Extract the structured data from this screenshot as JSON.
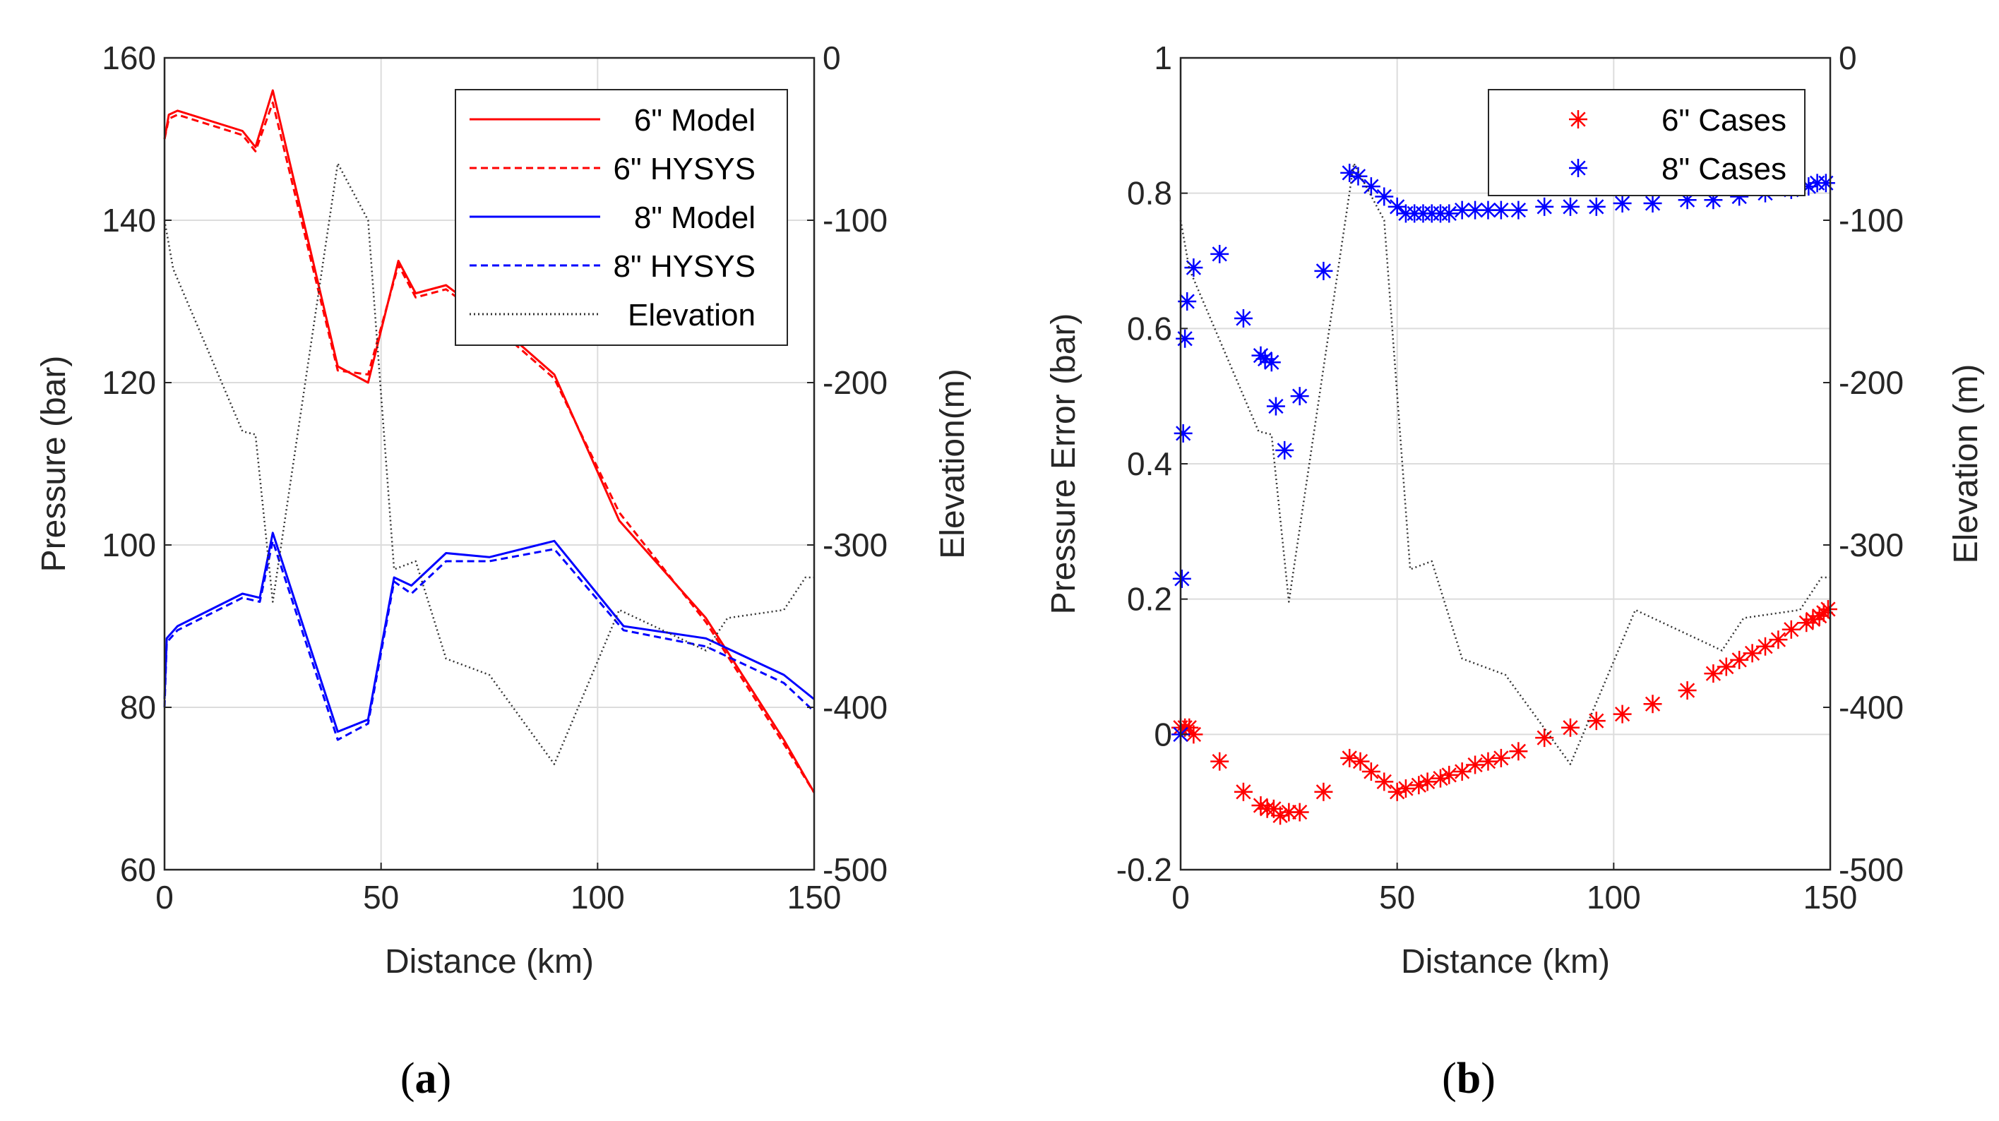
{
  "chart_data": [
    {
      "id": "a",
      "type": "line",
      "panel_label": {
        "open": "(",
        "letter": "a",
        "close": ")"
      },
      "xlabel": "Distance (km)",
      "ylabel": "Pressure (bar)",
      "y2label": "Elevation(m)",
      "xlim": [
        0,
        150
      ],
      "ylim": [
        60,
        160
      ],
      "y2lim": [
        -500,
        0
      ],
      "xticks": [
        "0",
        "50",
        "100",
        "150"
      ],
      "yticks": [
        "60",
        "80",
        "100",
        "120",
        "140",
        "160"
      ],
      "y2ticks": [
        "-500",
        "-400",
        "-300",
        "-200",
        "-100",
        "0"
      ],
      "grid": true,
      "legend_position": "top-right",
      "series": [
        {
          "name": "6\" Model",
          "axis": "left",
          "color": "#ff0000",
          "style": "solid",
          "x": [
            0,
            1,
            3,
            18,
            21,
            25,
            40,
            47,
            54,
            58,
            65,
            75,
            90,
            105,
            125,
            143,
            150
          ],
          "y": [
            150,
            153,
            153.5,
            151,
            149,
            156,
            122,
            120,
            135,
            131,
            132,
            128,
            121,
            103,
            91,
            76,
            69.5
          ]
        },
        {
          "name": "6\" HYSYS",
          "axis": "left",
          "color": "#ff0000",
          "style": "dashed",
          "x": [
            0,
            1,
            3,
            18,
            21,
            25,
            40,
            47,
            54,
            58,
            65,
            75,
            90,
            105,
            125,
            143,
            150
          ],
          "y": [
            150,
            152.5,
            153,
            150.5,
            148.5,
            154.5,
            121.5,
            121,
            134.5,
            130.5,
            131.5,
            127.5,
            120.5,
            104,
            90.5,
            75.5,
            69.5
          ]
        },
        {
          "name": "8\" Model",
          "axis": "left",
          "color": "#0000ff",
          "style": "solid",
          "x": [
            0,
            0.5,
            3,
            18,
            22,
            25,
            40,
            47,
            53,
            57,
            65,
            75,
            90,
            106,
            125,
            143,
            150
          ],
          "y": [
            81,
            88.5,
            90,
            94,
            93.5,
            101.5,
            77,
            78.5,
            96,
            95,
            99,
            98.5,
            100.5,
            90,
            88.5,
            84,
            81
          ]
        },
        {
          "name": "8\" HYSYS",
          "axis": "left",
          "color": "#0000ff",
          "style": "dashed",
          "x": [
            0,
            0.5,
            3,
            18,
            22,
            25,
            40,
            47,
            53,
            57,
            65,
            75,
            90,
            106,
            125,
            143,
            150
          ],
          "y": [
            80,
            88,
            89.5,
            93.5,
            93,
            100.5,
            76,
            78,
            95.5,
            94,
            98,
            98,
            99.5,
            89.5,
            87.5,
            83,
            79.5
          ]
        },
        {
          "name": "Elevation",
          "axis": "right",
          "color": "#333333",
          "style": "dotted",
          "x": [
            0,
            2,
            18,
            21,
            25,
            40,
            47,
            53,
            58,
            65,
            75,
            90,
            105,
            125,
            130,
            143,
            148,
            150
          ],
          "y": [
            -100,
            -130,
            -230,
            -232,
            -335,
            -65,
            -100,
            -315,
            -310,
            -370,
            -380,
            -435,
            -340,
            -365,
            -345,
            -340,
            -320,
            -320
          ]
        }
      ]
    },
    {
      "id": "b",
      "type": "scatter",
      "panel_label": {
        "open": "(",
        "letter": "b",
        "close": ")"
      },
      "xlabel": "Distance (km)",
      "ylabel": "Pressure Error (bar)",
      "y2label": "Elevation (m)",
      "xlim": [
        0,
        150
      ],
      "ylim": [
        -0.2,
        1
      ],
      "y2lim": [
        -500,
        0
      ],
      "xticks": [
        "0",
        "50",
        "100",
        "150"
      ],
      "yticks": [
        "-0.2",
        "0",
        "0.2",
        "0.4",
        "0.6",
        "0.8",
        "1"
      ],
      "y2ticks": [
        "-500",
        "-400",
        "-300",
        "-200",
        "-100",
        "0"
      ],
      "grid": true,
      "legend_position": "top-right",
      "series": [
        {
          "name": "6\" Cases",
          "axis": "left",
          "color": "#ff0000",
          "marker": "asterisk",
          "x": [
            0,
            1,
            2,
            3,
            9,
            14.5,
            18.5,
            20,
            21.5,
            23,
            25,
            27.5,
            33,
            39,
            41.5,
            44,
            47,
            50,
            52,
            55,
            57,
            60,
            62,
            65,
            68,
            71,
            74,
            78,
            84,
            90,
            96,
            102,
            109,
            117,
            123,
            126,
            129,
            132,
            135,
            138,
            141,
            144.5,
            146,
            147.5,
            148.5,
            149.5
          ],
          "y": [
            0.01,
            0.01,
            0.01,
            0.0,
            -0.04,
            -0.085,
            -0.105,
            -0.11,
            -0.11,
            -0.12,
            -0.115,
            -0.115,
            -0.085,
            -0.035,
            -0.04,
            -0.055,
            -0.07,
            -0.085,
            -0.08,
            -0.075,
            -0.07,
            -0.065,
            -0.06,
            -0.055,
            -0.045,
            -0.04,
            -0.035,
            -0.025,
            -0.005,
            0.01,
            0.02,
            0.03,
            0.045,
            0.065,
            0.09,
            0.1,
            0.11,
            0.12,
            0.13,
            0.14,
            0.155,
            0.165,
            0.17,
            0.175,
            0.18,
            0.185
          ]
        },
        {
          "name": "8\" Cases",
          "axis": "left",
          "color": "#0000ff",
          "marker": "asterisk",
          "x": [
            0,
            0.3,
            0.6,
            1,
            1.5,
            3,
            9,
            14.5,
            18.5,
            19.5,
            21,
            22,
            24,
            27.5,
            33,
            39,
            41,
            44,
            47,
            50,
            52,
            54,
            56,
            58,
            60,
            62,
            65,
            68,
            71,
            74,
            78,
            84,
            90,
            96,
            102,
            109,
            117,
            123,
            129,
            135,
            141,
            145,
            147,
            149
          ],
          "y": [
            0.0,
            0.23,
            0.445,
            0.585,
            0.64,
            0.69,
            0.71,
            0.615,
            0.56,
            0.555,
            0.55,
            0.485,
            0.42,
            0.5,
            0.685,
            0.83,
            0.825,
            0.81,
            0.795,
            0.78,
            0.77,
            0.77,
            0.77,
            0.77,
            0.77,
            0.77,
            0.775,
            0.775,
            0.775,
            0.775,
            0.775,
            0.78,
            0.78,
            0.78,
            0.785,
            0.785,
            0.79,
            0.79,
            0.795,
            0.8,
            0.805,
            0.81,
            0.815,
            0.815
          ]
        },
        {
          "name": "Elevation",
          "axis": "right",
          "color": "#333333",
          "style": "dotted",
          "legend": false,
          "x": [
            0,
            2,
            18,
            21,
            25,
            40,
            47,
            53,
            58,
            65,
            75,
            90,
            105,
            125,
            130,
            143,
            148,
            150
          ],
          "y": [
            -100,
            -130,
            -230,
            -232,
            -335,
            -65,
            -100,
            -315,
            -310,
            -370,
            -380,
            -435,
            -340,
            -365,
            -345,
            -340,
            -320,
            -320
          ]
        }
      ]
    }
  ]
}
